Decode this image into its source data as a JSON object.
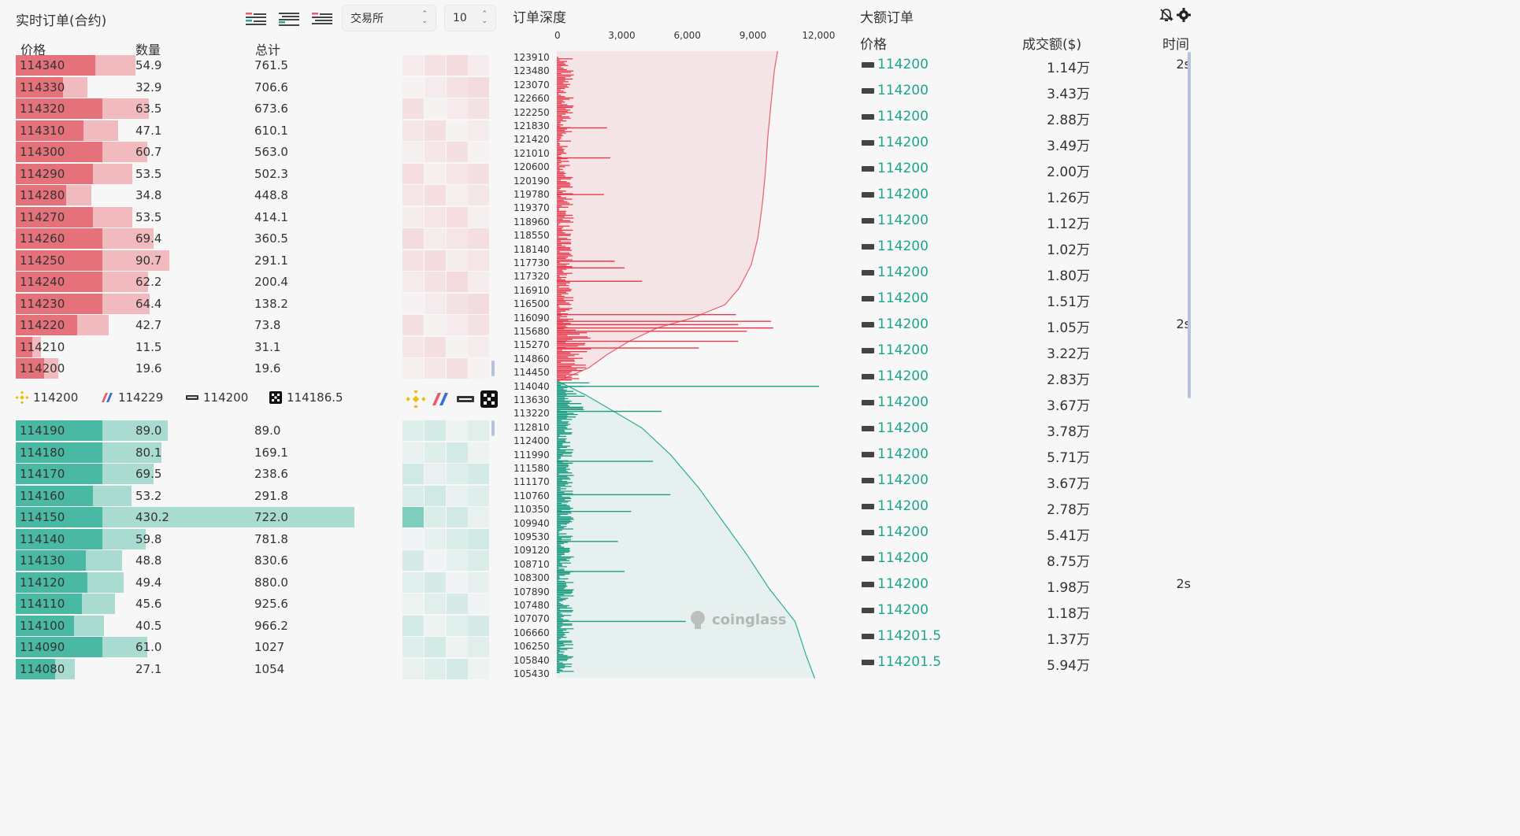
{
  "left": {
    "title": "实时订单(合约)",
    "exchange_select": "交易所",
    "depth_select": "10",
    "headers": {
      "price": "价格",
      "qty": "数量",
      "total": "总计"
    },
    "asks": [
      {
        "price": "114340",
        "qty": "54.9",
        "total": "761.5"
      },
      {
        "price": "114330",
        "qty": "32.9",
        "total": "706.6"
      },
      {
        "price": "114320",
        "qty": "63.5",
        "total": "673.6"
      },
      {
        "price": "114310",
        "qty": "47.1",
        "total": "610.1"
      },
      {
        "price": "114300",
        "qty": "60.7",
        "total": "563.0"
      },
      {
        "price": "114290",
        "qty": "53.5",
        "total": "502.3"
      },
      {
        "price": "114280",
        "qty": "34.8",
        "total": "448.8"
      },
      {
        "price": "114270",
        "qty": "53.5",
        "total": "414.1"
      },
      {
        "price": "114260",
        "qty": "69.4",
        "total": "360.5"
      },
      {
        "price": "114250",
        "qty": "90.7",
        "total": "291.1"
      },
      {
        "price": "114240",
        "qty": "62.2",
        "total": "200.4"
      },
      {
        "price": "114230",
        "qty": "64.4",
        "total": "138.2"
      },
      {
        "price": "114220",
        "qty": "42.7",
        "total": "73.8"
      },
      {
        "price": "114210",
        "qty": "11.5",
        "total": "31.1"
      },
      {
        "price": "114200",
        "qty": "19.6",
        "total": "19.6"
      }
    ],
    "exchange_prices": [
      {
        "icon": "binance-icon",
        "value": "114200"
      },
      {
        "icon": "bitmex-icon",
        "value": "114229"
      },
      {
        "icon": "bybit-icon",
        "value": "114200"
      },
      {
        "icon": "okx-icon",
        "value": "114186.5"
      }
    ],
    "bids": [
      {
        "price": "114190",
        "qty": "89.0",
        "total": "89.0"
      },
      {
        "price": "114180",
        "qty": "80.1",
        "total": "169.1"
      },
      {
        "price": "114170",
        "qty": "69.5",
        "total": "238.6"
      },
      {
        "price": "114160",
        "qty": "53.2",
        "total": "291.8"
      },
      {
        "price": "114150",
        "qty": "430.2",
        "total": "722.0"
      },
      {
        "price": "114140",
        "qty": "59.8",
        "total": "781.8"
      },
      {
        "price": "114130",
        "qty": "48.8",
        "total": "830.6"
      },
      {
        "price": "114120",
        "qty": "49.4",
        "total": "880.0"
      },
      {
        "price": "114110",
        "qty": "45.6",
        "total": "925.6"
      },
      {
        "price": "114100",
        "qty": "40.5",
        "total": "966.2"
      },
      {
        "price": "114090",
        "qty": "61.0",
        "total": "1027"
      },
      {
        "price": "114080",
        "qty": "27.1",
        "total": "1054"
      }
    ]
  },
  "depth": {
    "title": "订单深度",
    "watermark": "coinglass",
    "chart_data": {
      "type": "area",
      "title": "订单深度",
      "x_ticks": [
        "0",
        "3,000",
        "6,000",
        "9,000",
        "12,000"
      ],
      "xlim": [
        0,
        12000
      ],
      "y_ticks": [
        "123910",
        "123480",
        "123070",
        "122660",
        "122250",
        "121830",
        "121420",
        "121010",
        "120600",
        "120190",
        "119780",
        "119370",
        "118960",
        "118550",
        "118140",
        "117730",
        "117320",
        "116910",
        "116500",
        "116090",
        "115680",
        "115270",
        "114860",
        "114450",
        "114040",
        "113630",
        "113220",
        "112810",
        "112400",
        "111990",
        "111580",
        "111170",
        "110760",
        "110350",
        "109940",
        "109530",
        "109120",
        "108710",
        "108300",
        "107890",
        "107480",
        "107070",
        "106660",
        "106250",
        "105840",
        "105430"
      ],
      "series": [
        {
          "side": "ask",
          "color": "#e85d6a",
          "cumulative": [
            {
              "price": 124100,
              "value": 10100
            },
            {
              "price": 123500,
              "value": 9950
            },
            {
              "price": 122500,
              "value": 9800
            },
            {
              "price": 121500,
              "value": 9650
            },
            {
              "price": 120500,
              "value": 9550
            },
            {
              "price": 119500,
              "value": 9400
            },
            {
              "price": 118500,
              "value": 9200
            },
            {
              "price": 117700,
              "value": 8900
            },
            {
              "price": 117000,
              "value": 8350
            },
            {
              "price": 116500,
              "value": 7700
            },
            {
              "price": 116100,
              "value": 6200
            },
            {
              "price": 115800,
              "value": 4600
            },
            {
              "price": 115400,
              "value": 3300
            },
            {
              "price": 115000,
              "value": 2300
            },
            {
              "price": 114600,
              "value": 1450
            },
            {
              "price": 114200,
              "value": 20
            }
          ]
        },
        {
          "side": "bid",
          "color": "#2aae93",
          "cumulative": [
            {
              "price": 114190,
              "value": 90
            },
            {
              "price": 113800,
              "value": 1300
            },
            {
              "price": 113300,
              "value": 2600
            },
            {
              "price": 112800,
              "value": 3900
            },
            {
              "price": 112000,
              "value": 5200
            },
            {
              "price": 111000,
              "value": 6500
            },
            {
              "price": 110000,
              "value": 7600
            },
            {
              "price": 109000,
              "value": 8700
            },
            {
              "price": 108000,
              "value": 9700
            },
            {
              "price": 107000,
              "value": 10900
            },
            {
              "price": 106000,
              "value": 11400
            },
            {
              "price": 105300,
              "value": 11800
            }
          ]
        }
      ],
      "walls": [
        {
          "side": "ask",
          "price": 121800,
          "value": 2300
        },
        {
          "side": "ask",
          "price": 120900,
          "value": 2450
        },
        {
          "side": "ask",
          "price": 119800,
          "value": 2150
        },
        {
          "side": "ask",
          "price": 117800,
          "value": 2650
        },
        {
          "side": "ask",
          "price": 117600,
          "value": 3100
        },
        {
          "side": "ask",
          "price": 117200,
          "value": 3900
        },
        {
          "side": "ask",
          "price": 116200,
          "value": 8200
        },
        {
          "side": "ask",
          "price": 116000,
          "value": 9800
        },
        {
          "side": "ask",
          "price": 115900,
          "value": 8300
        },
        {
          "side": "ask",
          "price": 115800,
          "value": 9900
        },
        {
          "side": "ask",
          "price": 115700,
          "value": 8700
        },
        {
          "side": "ask",
          "price": 115400,
          "value": 8300
        },
        {
          "side": "ask",
          "price": 115200,
          "value": 6500
        },
        {
          "side": "bid",
          "price": 114050,
          "value": 12000
        },
        {
          "side": "bid",
          "price": 113300,
          "value": 4800
        },
        {
          "side": "bid",
          "price": 111800,
          "value": 4400
        },
        {
          "side": "bid",
          "price": 110800,
          "value": 5200
        },
        {
          "side": "bid",
          "price": 110300,
          "value": 3400
        },
        {
          "side": "bid",
          "price": 109400,
          "value": 2800
        },
        {
          "side": "bid",
          "price": 108500,
          "value": 3100
        },
        {
          "side": "bid",
          "price": 107000,
          "value": 5900
        }
      ]
    }
  },
  "big_orders": {
    "title": "大额订单",
    "headers": {
      "price": "价格",
      "amount": "成交额($)",
      "time": "时间"
    },
    "rows": [
      {
        "price": "114200",
        "amount": "1.14万",
        "time": "2s"
      },
      {
        "price": "114200",
        "amount": "3.43万",
        "time": ""
      },
      {
        "price": "114200",
        "amount": "2.88万",
        "time": ""
      },
      {
        "price": "114200",
        "amount": "3.49万",
        "time": ""
      },
      {
        "price": "114200",
        "amount": "2.00万",
        "time": ""
      },
      {
        "price": "114200",
        "amount": "1.26万",
        "time": ""
      },
      {
        "price": "114200",
        "amount": "1.12万",
        "time": ""
      },
      {
        "price": "114200",
        "amount": "1.02万",
        "time": ""
      },
      {
        "price": "114200",
        "amount": "1.80万",
        "time": ""
      },
      {
        "price": "114200",
        "amount": "1.51万",
        "time": ""
      },
      {
        "price": "114200",
        "amount": "1.05万",
        "time": "2s"
      },
      {
        "price": "114200",
        "amount": "3.22万",
        "time": ""
      },
      {
        "price": "114200",
        "amount": "2.83万",
        "time": ""
      },
      {
        "price": "114200",
        "amount": "3.67万",
        "time": ""
      },
      {
        "price": "114200",
        "amount": "3.78万",
        "time": ""
      },
      {
        "price": "114200",
        "amount": "5.71万",
        "time": ""
      },
      {
        "price": "114200",
        "amount": "3.67万",
        "time": ""
      },
      {
        "price": "114200",
        "amount": "2.78万",
        "time": ""
      },
      {
        "price": "114200",
        "amount": "5.41万",
        "time": ""
      },
      {
        "price": "114200",
        "amount": "8.75万",
        "time": ""
      },
      {
        "price": "114200",
        "amount": "1.98万",
        "time": "2s"
      },
      {
        "price": "114200",
        "amount": "1.18万",
        "time": ""
      },
      {
        "price": "114201.5",
        "amount": "1.37万",
        "time": ""
      },
      {
        "price": "114201.5",
        "amount": "5.94万",
        "time": ""
      }
    ]
  }
}
